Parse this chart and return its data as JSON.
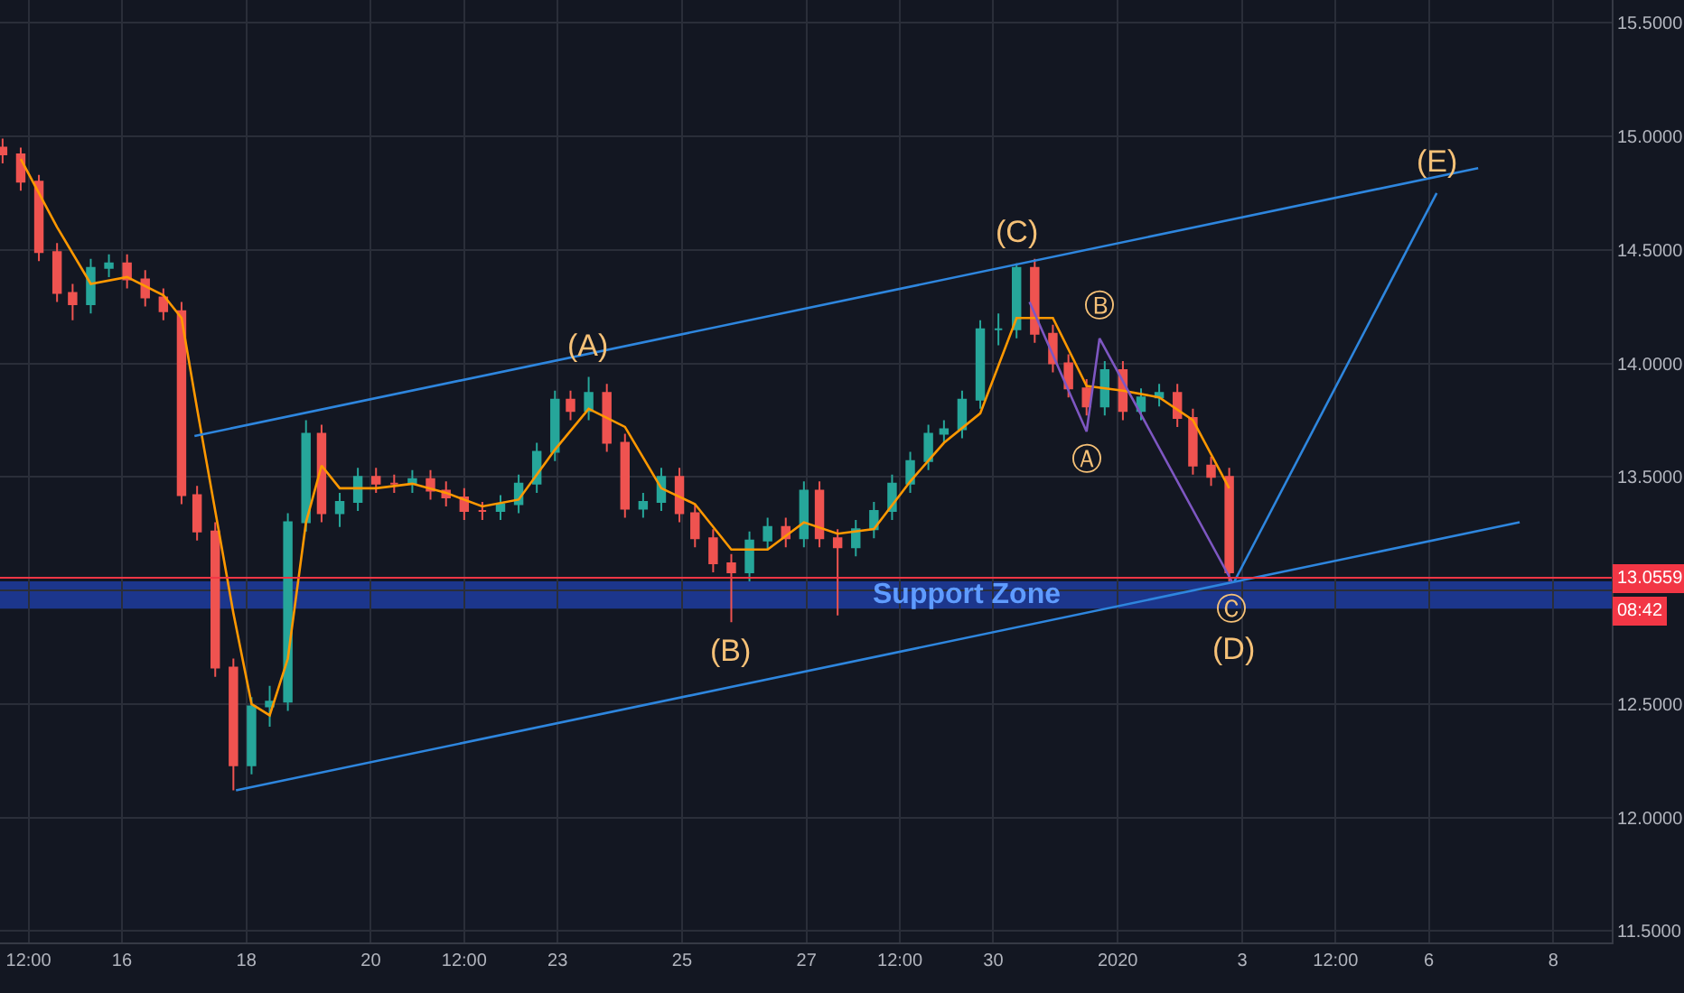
{
  "chart_data": {
    "type": "candlestick",
    "x": [
      "2019-12-14T02:00",
      "2019-12-14T09:00",
      "2019-12-14T16:00",
      "2019-12-14T23:00",
      "2019-12-15T05:00",
      "2019-12-15T12:00",
      "2019-12-15T19:00",
      "2019-12-16T02:00",
      "2019-12-16T09:00",
      "2019-12-16T16:00",
      "2019-12-16T23:00",
      "2019-12-17T05:00",
      "2019-12-17T12:00",
      "2019-12-17T19:00",
      "2019-12-18T02:00",
      "2019-12-18T09:00",
      "2019-12-18T16:00",
      "2019-12-18T23:00",
      "2019-12-19T05:00",
      "2019-12-19T12:00",
      "2019-12-19T19:00",
      "2019-12-20T02:00",
      "2019-12-20T09:00",
      "2019-12-20T16:00",
      "2019-12-20T23:00",
      "2019-12-21T05:00",
      "2019-12-21T12:00",
      "2019-12-21T19:00",
      "2019-12-22T02:00",
      "2019-12-22T09:00",
      "2019-12-22T16:00",
      "2019-12-22T23:00",
      "2019-12-23T05:00",
      "2019-12-23T12:00",
      "2019-12-23T19:00",
      "2019-12-24T02:00",
      "2019-12-24T09:00",
      "2019-12-24T16:00",
      "2019-12-24T23:00",
      "2019-12-25T05:00",
      "2019-12-25T12:00",
      "2019-12-25T19:00",
      "2019-12-26T02:00",
      "2019-12-26T09:00",
      "2019-12-26T16:00",
      "2019-12-26T23:00",
      "2019-12-27T05:00",
      "2019-12-27T12:00",
      "2019-12-27T19:00",
      "2019-12-28T02:00",
      "2019-12-28T09:00",
      "2019-12-28T16:00",
      "2019-12-28T23:00",
      "2019-12-29T05:00",
      "2019-12-29T12:00",
      "2019-12-29T19:00",
      "2019-12-30T02:00",
      "2019-12-30T09:00",
      "2019-12-30T16:00",
      "2019-12-30T23:00",
      "2019-12-31T05:00",
      "2019-12-31T12:00",
      "2019-12-31T19:00",
      "2020-01-01T02:00",
      "2020-01-01T09:00",
      "2020-01-01T16:00",
      "2020-01-01T23:00",
      "2020-01-02T05:00",
      "2020-01-02T12:00",
      "2020-01-02T19:00"
    ],
    "ohlc": [
      [
        14.95,
        14.99,
        14.88,
        14.92
      ],
      [
        14.92,
        14.95,
        14.76,
        14.8
      ],
      [
        14.8,
        14.83,
        14.45,
        14.49
      ],
      [
        14.49,
        14.53,
        14.27,
        14.31
      ],
      [
        14.31,
        14.35,
        14.19,
        14.26
      ],
      [
        14.26,
        14.46,
        14.22,
        14.42
      ],
      [
        14.42,
        14.48,
        14.38,
        14.44
      ],
      [
        14.44,
        14.48,
        14.33,
        14.37
      ],
      [
        14.37,
        14.41,
        14.25,
        14.29
      ],
      [
        14.29,
        14.33,
        14.19,
        14.23
      ],
      [
        14.23,
        14.27,
        13.38,
        13.42
      ],
      [
        13.42,
        13.46,
        13.22,
        13.26
      ],
      [
        13.26,
        13.3,
        12.62,
        12.66
      ],
      [
        12.66,
        12.7,
        12.12,
        12.23
      ],
      [
        12.23,
        12.53,
        12.19,
        12.49
      ],
      [
        12.49,
        12.58,
        12.4,
        12.51
      ],
      [
        12.51,
        13.34,
        12.47,
        13.3
      ],
      [
        13.3,
        13.75,
        13.26,
        13.69
      ],
      [
        13.69,
        13.73,
        13.3,
        13.34
      ],
      [
        13.34,
        13.43,
        13.28,
        13.39
      ],
      [
        13.39,
        13.54,
        13.35,
        13.5
      ],
      [
        13.5,
        13.54,
        13.43,
        13.47
      ],
      [
        13.47,
        13.51,
        13.43,
        13.47
      ],
      [
        13.47,
        13.53,
        13.43,
        13.49
      ],
      [
        13.49,
        13.53,
        13.4,
        13.44
      ],
      [
        13.44,
        13.48,
        13.37,
        13.41
      ],
      [
        13.41,
        13.45,
        13.31,
        13.35
      ],
      [
        13.35,
        13.39,
        13.31,
        13.35
      ],
      [
        13.35,
        13.42,
        13.31,
        13.38
      ],
      [
        13.38,
        13.51,
        13.34,
        13.47
      ],
      [
        13.47,
        13.65,
        13.43,
        13.61
      ],
      [
        13.61,
        13.88,
        13.57,
        13.84
      ],
      [
        13.84,
        13.88,
        13.75,
        13.79
      ],
      [
        13.79,
        13.94,
        13.75,
        13.87
      ],
      [
        13.87,
        13.91,
        13.61,
        13.65
      ],
      [
        13.65,
        13.69,
        13.32,
        13.36
      ],
      [
        13.36,
        13.43,
        13.32,
        13.39
      ],
      [
        13.39,
        13.54,
        13.35,
        13.5
      ],
      [
        13.5,
        13.54,
        13.3,
        13.34
      ],
      [
        13.34,
        13.38,
        13.19,
        13.23
      ],
      [
        13.23,
        13.27,
        13.08,
        13.12
      ],
      [
        13.12,
        13.16,
        12.86,
        13.08
      ],
      [
        13.08,
        13.26,
        13.04,
        13.22
      ],
      [
        13.22,
        13.32,
        13.18,
        13.28
      ],
      [
        13.28,
        13.32,
        13.19,
        13.23
      ],
      [
        13.23,
        13.48,
        13.19,
        13.44
      ],
      [
        13.44,
        13.48,
        13.19,
        13.23
      ],
      [
        13.23,
        13.27,
        12.89,
        13.19
      ],
      [
        13.19,
        13.31,
        13.15,
        13.27
      ],
      [
        13.27,
        13.39,
        13.23,
        13.35
      ],
      [
        13.35,
        13.51,
        13.31,
        13.47
      ],
      [
        13.47,
        13.61,
        13.43,
        13.57
      ],
      [
        13.57,
        13.73,
        13.53,
        13.69
      ],
      [
        13.69,
        13.75,
        13.65,
        13.71
      ],
      [
        13.71,
        13.88,
        13.67,
        13.84
      ],
      [
        13.84,
        14.19,
        13.8,
        14.15
      ],
      [
        14.15,
        14.22,
        14.08,
        14.15
      ],
      [
        14.15,
        14.44,
        14.11,
        14.42
      ],
      [
        14.42,
        14.46,
        14.09,
        14.13
      ],
      [
        14.13,
        14.17,
        13.96,
        14.0
      ],
      [
        14.0,
        14.04,
        13.85,
        13.89
      ],
      [
        13.89,
        13.93,
        13.77,
        13.81
      ],
      [
        13.81,
        14.01,
        13.77,
        13.97
      ],
      [
        13.97,
        14.01,
        13.75,
        13.79
      ],
      [
        13.79,
        13.89,
        13.75,
        13.85
      ],
      [
        13.85,
        13.91,
        13.81,
        13.87
      ],
      [
        13.87,
        13.91,
        13.72,
        13.76
      ],
      [
        13.76,
        13.8,
        13.51,
        13.55
      ],
      [
        13.55,
        13.59,
        13.46,
        13.5
      ],
      [
        13.5,
        13.54,
        13.04,
        13.08
      ]
    ],
    "series": [
      {
        "type": "line",
        "color": "#ff9800",
        "x": [
          "2019-12-14T09:00",
          "2019-12-14T23:00",
          "2019-12-15T12:00",
          "2019-12-16T02:00",
          "2019-12-16T16:00",
          "2019-12-16T23:00",
          "2019-12-17T05:00",
          "2019-12-17T12:00",
          "2019-12-17T19:00",
          "2019-12-18T02:00",
          "2019-12-18T09:00",
          "2019-12-18T16:00",
          "2019-12-18T23:00",
          "2019-12-19T05:00",
          "2019-12-19T12:00",
          "2019-12-20T02:00",
          "2019-12-20T16:00",
          "2019-12-21T05:00",
          "2019-12-21T19:00",
          "2019-12-22T09:00",
          "2019-12-22T23:00",
          "2019-12-23T12:00",
          "2019-12-24T02:00",
          "2019-12-24T16:00",
          "2019-12-25T05:00",
          "2019-12-25T19:00",
          "2019-12-26T09:00",
          "2019-12-26T23:00",
          "2019-12-27T12:00",
          "2019-12-28T02:00",
          "2019-12-28T16:00",
          "2019-12-29T05:00",
          "2019-12-29T19:00",
          "2019-12-30T09:00",
          "2019-12-30T23:00",
          "2019-12-31T12:00",
          "2020-01-01T02:00",
          "2020-01-01T16:00",
          "2020-01-02T05:00",
          "2020-01-02T19:00"
        ],
        "values": [
          14.9,
          14.6,
          14.35,
          14.38,
          14.3,
          14.2,
          13.8,
          13.35,
          12.9,
          12.5,
          12.45,
          12.7,
          13.3,
          13.55,
          13.45,
          13.45,
          13.47,
          13.43,
          13.37,
          13.4,
          13.62,
          13.8,
          13.72,
          13.45,
          13.38,
          13.18,
          13.18,
          13.3,
          13.25,
          13.27,
          13.48,
          13.65,
          13.78,
          14.2,
          14.2,
          13.9,
          13.88,
          13.85,
          13.75,
          13.45
        ]
      },
      {
        "type": "line",
        "color": "#2e86de",
        "x": [
          "2019-12-17T04:00",
          "2020-01-06T19:00"
        ],
        "values": [
          13.68,
          14.86
        ]
      },
      {
        "type": "line",
        "color": "#2e86de",
        "x": [
          "2019-12-17T20:00",
          "2020-01-07T11:00"
        ],
        "values": [
          12.12,
          13.3
        ]
      },
      {
        "type": "line",
        "color": "#2e86de",
        "x": [
          "2020-01-02T21:00",
          "2020-01-06T03:00"
        ],
        "values": [
          13.04,
          14.75
        ]
      },
      {
        "type": "line",
        "color": "#7e57c2",
        "x": [
          "2019-12-30T14:00",
          "2019-12-31T12:00",
          "2019-12-31T17:00",
          "2020-01-02T20:00"
        ],
        "values": [
          14.27,
          13.7,
          14.11,
          13.04
        ]
      }
    ],
    "xlim": [
      "2019-12-14T01:00",
      "2020-01-08T22:30"
    ],
    "xticks": [
      {
        "value": "2019-12-14T12:00",
        "label": "12:00"
      },
      {
        "value": "2019-12-16",
        "label": "16"
      },
      {
        "value": "2019-12-18",
        "label": "18"
      },
      {
        "value": "2019-12-20",
        "label": "20"
      },
      {
        "value": "2019-12-21T12:00",
        "label": "12:00"
      },
      {
        "value": "2019-12-23",
        "label": "23"
      },
      {
        "value": "2019-12-25",
        "label": "25"
      },
      {
        "value": "2019-12-27",
        "label": "27"
      },
      {
        "value": "2019-12-28T12:00",
        "label": "12:00"
      },
      {
        "value": "2019-12-30",
        "label": "30"
      },
      {
        "value": "2020-01-01",
        "label": "2020"
      },
      {
        "value": "2020-01-03",
        "label": "3"
      },
      {
        "value": "2020-01-04T12:00",
        "label": "12:00"
      },
      {
        "value": "2020-01-06",
        "label": "6"
      },
      {
        "value": "2020-01-08",
        "label": "8"
      }
    ],
    "ylim": [
      11.45,
      15.6
    ],
    "yticks": [
      {
        "value": 11.5,
        "label": "11.5000"
      },
      {
        "value": 12,
        "label": "12.0000"
      },
      {
        "value": 12.5,
        "label": "12.5000"
      },
      {
        "value": 13,
        "label": null
      },
      {
        "value": 13.5,
        "label": "13.5000"
      },
      {
        "value": 14,
        "label": "14.0000"
      },
      {
        "value": 14.5,
        "label": "14.5000"
      },
      {
        "value": 15,
        "label": "15.0000"
      },
      {
        "value": 15.5,
        "label": "15.5000"
      }
    ],
    "grid": true,
    "ref_lines": [
      {
        "axis": "y",
        "value": 13.0559,
        "label": "13.0559",
        "color": "#f23645"
      }
    ],
    "bands": [
      {
        "axis": "y",
        "from": 12.92,
        "to": 13.04,
        "label": "Support Zone",
        "color": "#1f3fa8"
      }
    ],
    "annotations": [
      {
        "text": "(A)",
        "x": "2019-12-23T12:00",
        "y": 13.94
      },
      {
        "text": "(B)",
        "x": "2019-12-25T19:00",
        "y": 12.86
      },
      {
        "text": "(C)",
        "x": "2019-12-30T09:00",
        "y": 14.44
      },
      {
        "text": "(D)",
        "x": "2020-01-02T21:00",
        "y": 13.04
      },
      {
        "text": "(E)",
        "x": "2020-01-06T03:00",
        "y": 14.75
      },
      {
        "text": "Ⓐ",
        "x": "2019-12-31T12:00",
        "y": 13.7
      },
      {
        "text": "Ⓑ",
        "x": "2019-12-31T17:00",
        "y": 14.11
      },
      {
        "text": "Ⓒ",
        "x": "2020-01-02T20:00",
        "y": 13.04
      },
      "08:42"
    ]
  }
}
